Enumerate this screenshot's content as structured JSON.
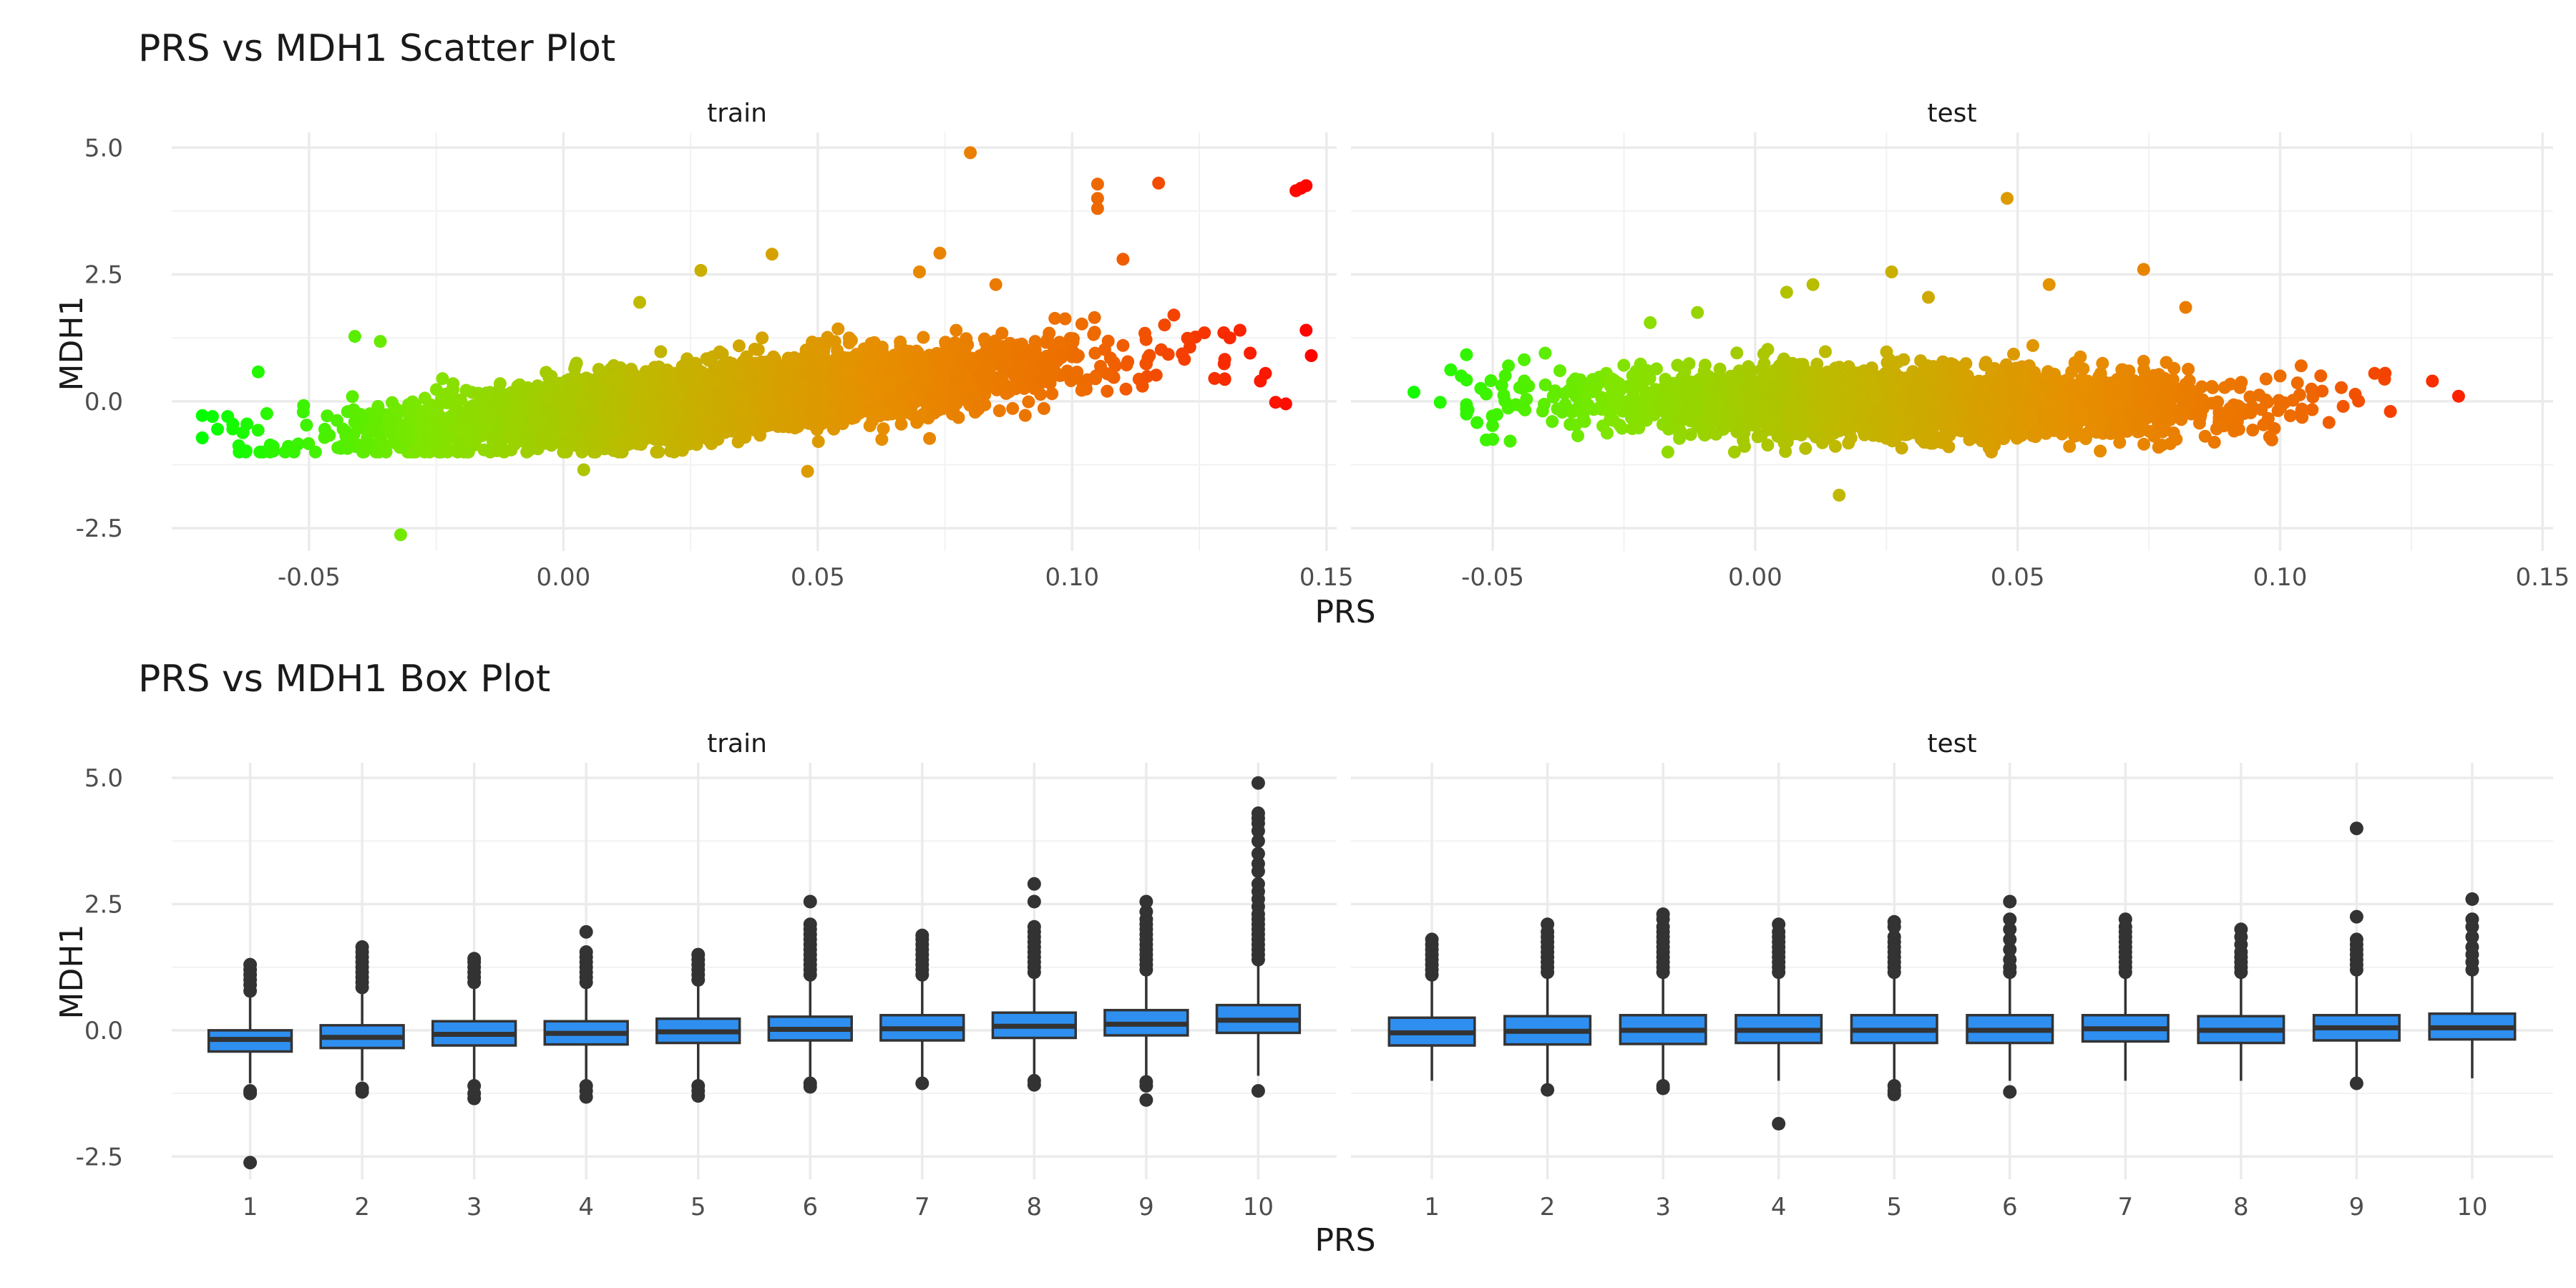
{
  "figure": {
    "x_axis_label": "PRS",
    "y_axis_label": "MDH1"
  },
  "chart_data": [
    {
      "type": "scatter",
      "title": "PRS vs MDH1 Scatter Plot",
      "xlabel": "PRS",
      "ylabel": "MDH1",
      "xlim": [
        -0.077,
        0.152
      ],
      "ylim": [
        -2.95,
        5.3
      ],
      "x_ticks": [
        -0.05,
        0.0,
        0.05,
        0.1,
        0.15
      ],
      "x_tick_labels": [
        "-0.05",
        "0.00",
        "0.05",
        "0.10",
        "0.15"
      ],
      "y_ticks": [
        -2.5,
        0.0,
        2.5,
        5.0
      ],
      "y_tick_labels": [
        "-2.5",
        "0.0",
        "2.5",
        "5.0"
      ],
      "color_gradient": [
        "#00ff00",
        "#7fe600",
        "#c0b800",
        "#e69000",
        "#ee6a00",
        "#ff0000"
      ],
      "grid": true,
      "legend": "none",
      "facets": [
        {
          "name": "train",
          "cloud": {
            "n": 5200,
            "x_mean": 0.03,
            "x_sd": 0.03,
            "x_min": -0.065,
            "x_max": 0.13,
            "slope": 10,
            "intercept": -0.27,
            "y_sd": 0.32
          },
          "points": [
            {
              "x": -0.071,
              "y": -0.28
            },
            {
              "x": -0.071,
              "y": -0.72
            },
            {
              "x": -0.069,
              "y": -0.3
            },
            {
              "x": -0.068,
              "y": -0.55
            },
            {
              "x": -0.066,
              "y": -0.3
            },
            {
              "x": -0.063,
              "y": -0.62
            },
            {
              "x": -0.06,
              "y": 0.58
            },
            {
              "x": -0.057,
              "y": -0.98
            },
            {
              "x": -0.041,
              "y": 1.28
            },
            {
              "x": -0.036,
              "y": 1.18
            },
            {
              "x": -0.032,
              "y": -2.63
            },
            {
              "x": 0.004,
              "y": -1.35
            },
            {
              "x": 0.015,
              "y": 1.95
            },
            {
              "x": 0.027,
              "y": 2.58
            },
            {
              "x": 0.041,
              "y": 2.9
            },
            {
              "x": 0.048,
              "y": -1.38
            },
            {
              "x": 0.07,
              "y": 2.55
            },
            {
              "x": 0.074,
              "y": 2.92
            },
            {
              "x": 0.08,
              "y": 4.9
            },
            {
              "x": 0.085,
              "y": 2.3
            },
            {
              "x": 0.105,
              "y": 3.8
            },
            {
              "x": 0.105,
              "y": 4.0
            },
            {
              "x": 0.105,
              "y": 4.28
            },
            {
              "x": 0.11,
              "y": 1.1
            },
            {
              "x": 0.11,
              "y": 2.8
            },
            {
              "x": 0.117,
              "y": 4.3
            },
            {
              "x": 0.12,
              "y": 1.7
            },
            {
              "x": 0.126,
              "y": 1.35
            },
            {
              "x": 0.128,
              "y": 0.45
            },
            {
              "x": 0.131,
              "y": 1.25
            },
            {
              "x": 0.133,
              "y": 1.4
            },
            {
              "x": 0.135,
              "y": 0.95
            },
            {
              "x": 0.137,
              "y": 0.4
            },
            {
              "x": 0.138,
              "y": 0.55
            },
            {
              "x": 0.14,
              "y": -0.02
            },
            {
              "x": 0.142,
              "y": -0.05
            },
            {
              "x": 0.144,
              "y": 4.15
            },
            {
              "x": 0.145,
              "y": 4.2
            },
            {
              "x": 0.146,
              "y": 4.25
            },
            {
              "x": 0.146,
              "y": 1.4
            },
            {
              "x": 0.147,
              "y": 0.9
            }
          ]
        },
        {
          "name": "test",
          "cloud": {
            "n": 3200,
            "x_mean": 0.028,
            "x_sd": 0.028,
            "x_min": -0.055,
            "x_max": 0.12,
            "slope": -1,
            "intercept": 0.0,
            "y_sd": 0.32
          },
          "points": [
            {
              "x": -0.065,
              "y": 0.18
            },
            {
              "x": -0.06,
              "y": -0.02
            },
            {
              "x": -0.058,
              "y": 0.62
            },
            {
              "x": -0.056,
              "y": 0.5
            },
            {
              "x": -0.053,
              "y": -0.42
            },
            {
              "x": -0.05,
              "y": -0.75
            },
            {
              "x": -0.047,
              "y": 0.7
            },
            {
              "x": -0.044,
              "y": 0.82
            },
            {
              "x": -0.04,
              "y": 0.95
            },
            {
              "x": -0.02,
              "y": 1.55
            },
            {
              "x": -0.011,
              "y": 1.75
            },
            {
              "x": 0.006,
              "y": 2.15
            },
            {
              "x": 0.011,
              "y": 2.3
            },
            {
              "x": 0.016,
              "y": -1.85
            },
            {
              "x": 0.026,
              "y": 2.55
            },
            {
              "x": 0.033,
              "y": 2.05
            },
            {
              "x": 0.048,
              "y": 4.0
            },
            {
              "x": 0.056,
              "y": 2.3
            },
            {
              "x": 0.074,
              "y": 2.6
            },
            {
              "x": 0.082,
              "y": 1.85
            },
            {
              "x": 0.098,
              "y": -0.7
            },
            {
              "x": 0.1,
              "y": 0.5
            },
            {
              "x": 0.104,
              "y": 0.7
            },
            {
              "x": 0.108,
              "y": 0.2
            },
            {
              "x": 0.112,
              "y": -0.1
            },
            {
              "x": 0.118,
              "y": 0.55
            },
            {
              "x": 0.121,
              "y": -0.2
            },
            {
              "x": 0.129,
              "y": 0.4
            },
            {
              "x": 0.134,
              "y": 0.1
            }
          ]
        }
      ]
    },
    {
      "type": "box",
      "title": "PRS vs MDH1 Box Plot",
      "xlabel": "PRS",
      "ylabel": "MDH1",
      "categories": [
        "1",
        "2",
        "3",
        "4",
        "5",
        "6",
        "7",
        "8",
        "9",
        "10"
      ],
      "ylim": [
        -2.95,
        5.3
      ],
      "y_ticks": [
        -2.5,
        0.0,
        2.5,
        5.0
      ],
      "y_tick_labels": [
        "-2.5",
        "0.0",
        "2.5",
        "5.0"
      ],
      "box_color": "#2e8ff0",
      "grid": true,
      "legend": "none",
      "facets": [
        {
          "name": "train",
          "boxes": [
            {
              "q1": -0.42,
              "median": -0.18,
              "q3": 0.0,
              "whisker_low": -1.05,
              "whisker_high": 0.65,
              "outliers": [
                -1.2,
                -1.25,
                0.78,
                0.9,
                1.0,
                1.1,
                1.2,
                1.3,
                -2.62
              ]
            },
            {
              "q1": -0.35,
              "median": -0.14,
              "q3": 0.1,
              "whisker_low": -1.0,
              "whisker_high": 0.75,
              "outliers": [
                -1.15,
                -1.22,
                0.85,
                0.95,
                1.05,
                1.15,
                1.25,
                1.35,
                1.45,
                1.55,
                1.65
              ]
            },
            {
              "q1": -0.3,
              "median": -0.08,
              "q3": 0.18,
              "whisker_low": -1.0,
              "whisker_high": 0.85,
              "outliers": [
                -1.1,
                -1.25,
                -1.35,
                0.95,
                1.05,
                1.15,
                1.25,
                1.35,
                1.42
              ]
            },
            {
              "q1": -0.28,
              "median": -0.06,
              "q3": 0.18,
              "whisker_low": -1.0,
              "whisker_high": 0.85,
              "outliers": [
                -1.1,
                -1.2,
                -1.32,
                0.95,
                1.05,
                1.15,
                1.25,
                1.35,
                1.45,
                1.55,
                1.95
              ]
            },
            {
              "q1": -0.25,
              "median": -0.03,
              "q3": 0.23,
              "whisker_low": -1.0,
              "whisker_high": 0.9,
              "outliers": [
                -1.1,
                -1.2,
                -1.3,
                1.0,
                1.1,
                1.2,
                1.3,
                1.4,
                1.5
              ]
            },
            {
              "q1": -0.2,
              "median": 0.02,
              "q3": 0.27,
              "whisker_low": -1.0,
              "whisker_high": 1.0,
              "outliers": [
                -1.05,
                -1.12,
                1.1,
                1.2,
                1.3,
                1.4,
                1.5,
                1.6,
                1.7,
                1.8,
                1.9,
                2.0,
                2.1,
                2.55
              ]
            },
            {
              "q1": -0.2,
              "median": 0.03,
              "q3": 0.3,
              "whisker_low": -1.0,
              "whisker_high": 1.0,
              "outliers": [
                -1.05,
                1.1,
                1.2,
                1.3,
                1.4,
                1.5,
                1.6,
                1.7,
                1.8,
                1.88
              ]
            },
            {
              "q1": -0.15,
              "median": 0.08,
              "q3": 0.35,
              "whisker_low": -1.0,
              "whisker_high": 1.05,
              "outliers": [
                -1.0,
                -1.08,
                1.15,
                1.25,
                1.35,
                1.45,
                1.55,
                1.65,
                1.75,
                1.85,
                1.95,
                2.05,
                2.55,
                2.9
              ]
            },
            {
              "q1": -0.1,
              "median": 0.12,
              "q3": 0.4,
              "whisker_low": -1.0,
              "whisker_high": 1.1,
              "outliers": [
                -1.02,
                -1.1,
                -1.38,
                1.2,
                1.3,
                1.4,
                1.5,
                1.6,
                1.7,
                1.8,
                1.9,
                2.0,
                2.1,
                2.2,
                2.35,
                2.55
              ]
            },
            {
              "q1": -0.05,
              "median": 0.2,
              "q3": 0.5,
              "whisker_low": -0.9,
              "whisker_high": 1.3,
              "outliers": [
                -1.2,
                1.4,
                1.5,
                1.6,
                1.7,
                1.8,
                1.9,
                2.0,
                2.1,
                2.2,
                2.3,
                2.45,
                2.6,
                2.75,
                2.9,
                3.15,
                3.3,
                3.5,
                3.75,
                3.95,
                4.1,
                4.2,
                4.3,
                4.9
              ]
            }
          ]
        },
        {
          "name": "test",
          "boxes": [
            {
              "q1": -0.3,
              "median": -0.05,
              "q3": 0.25,
              "whisker_low": -1.0,
              "whisker_high": 1.0,
              "outliers": [
                1.1,
                1.2,
                1.3,
                1.4,
                1.5,
                1.6,
                1.7,
                1.8
              ]
            },
            {
              "q1": -0.28,
              "median": -0.02,
              "q3": 0.28,
              "whisker_low": -1.05,
              "whisker_high": 1.05,
              "outliers": [
                -1.18,
                1.15,
                1.25,
                1.35,
                1.45,
                1.55,
                1.65,
                1.75,
                1.85,
                1.95,
                2.1
              ]
            },
            {
              "q1": -0.27,
              "median": 0.0,
              "q3": 0.3,
              "whisker_low": -1.0,
              "whisker_high": 1.05,
              "outliers": [
                -1.1,
                -1.15,
                1.15,
                1.25,
                1.35,
                1.45,
                1.55,
                1.65,
                1.75,
                1.85,
                1.95,
                2.05,
                2.2,
                2.3
              ]
            },
            {
              "q1": -0.25,
              "median": 0.0,
              "q3": 0.3,
              "whisker_low": -1.0,
              "whisker_high": 1.05,
              "outliers": [
                -1.85,
                1.15,
                1.25,
                1.35,
                1.45,
                1.55,
                1.65,
                1.75,
                1.85,
                1.95,
                2.1
              ]
            },
            {
              "q1": -0.25,
              "median": 0.0,
              "q3": 0.3,
              "whisker_low": -1.0,
              "whisker_high": 1.05,
              "outliers": [
                -1.1,
                -1.2,
                -1.27,
                1.15,
                1.25,
                1.35,
                1.45,
                1.55,
                1.65,
                1.75,
                1.85,
                2.05,
                2.15
              ]
            },
            {
              "q1": -0.25,
              "median": 0.0,
              "q3": 0.3,
              "whisker_low": -1.0,
              "whisker_high": 1.05,
              "outliers": [
                -1.22,
                1.15,
                1.25,
                1.4,
                1.6,
                1.8,
                2.0,
                2.2,
                2.55
              ]
            },
            {
              "q1": -0.22,
              "median": 0.03,
              "q3": 0.3,
              "whisker_low": -1.0,
              "whisker_high": 1.05,
              "outliers": [
                1.15,
                1.25,
                1.35,
                1.45,
                1.55,
                1.65,
                1.75,
                1.85,
                1.95,
                2.05,
                2.2
              ]
            },
            {
              "q1": -0.25,
              "median": 0.0,
              "q3": 0.28,
              "whisker_low": -1.0,
              "whisker_high": 1.05,
              "outliers": [
                1.15,
                1.25,
                1.35,
                1.45,
                1.55,
                1.7,
                1.85,
                2.0
              ]
            },
            {
              "q1": -0.2,
              "median": 0.05,
              "q3": 0.3,
              "whisker_low": -1.0,
              "whisker_high": 1.1,
              "outliers": [
                -1.05,
                1.2,
                1.3,
                1.4,
                1.5,
                1.6,
                1.7,
                1.8,
                2.25,
                4.0
              ]
            },
            {
              "q1": -0.18,
              "median": 0.05,
              "q3": 0.33,
              "whisker_low": -0.95,
              "whisker_high": 1.1,
              "outliers": [
                1.2,
                1.35,
                1.5,
                1.65,
                1.85,
                2.05,
                2.2,
                2.6
              ]
            }
          ]
        }
      ]
    }
  ]
}
